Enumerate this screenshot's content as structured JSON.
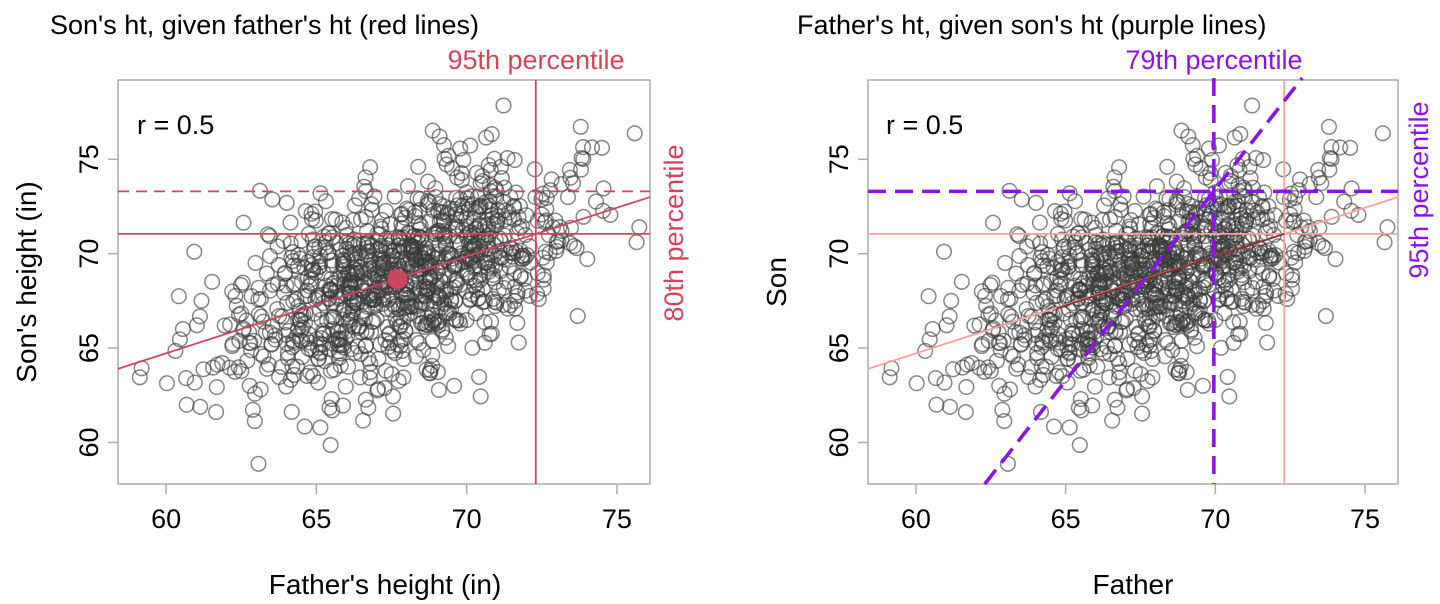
{
  "colors": {
    "red": "#d1455c",
    "light_red": "#f4a3a0",
    "dark_red": "#8b2b2b",
    "purple": "#8a14e6",
    "points": "#3a3a3a",
    "axis": "#aaaaaa"
  },
  "chart_data": [
    {
      "type": "scatter",
      "title": "Son's ht, given father's ht (red lines)",
      "xlabel": "Father's height (in)",
      "ylabel": "Son's height (in)",
      "xlim": [
        58.4,
        76.1
      ],
      "ylim": [
        57.8,
        79.2
      ],
      "xticks": [
        "60",
        "65",
        "70",
        "75"
      ],
      "yticks": [
        "60",
        "65",
        "70",
        "75"
      ],
      "annotation": "r = 0.5",
      "point_color": "#3a3a3a",
      "points_source": "same father/son sample in both panels",
      "lines": [
        {
          "kind": "regression",
          "style": "solid",
          "color": "#d1455c",
          "x": [
            58.4,
            76.1
          ],
          "y": [
            63.9,
            73.0
          ]
        },
        {
          "kind": "vertical",
          "style": "solid",
          "color": "#d1455c",
          "x": 72.3
        },
        {
          "kind": "horizontal",
          "style": "solid",
          "color": "#d1455c",
          "y": 71.05
        },
        {
          "kind": "horizontal",
          "style": "dashed",
          "color": "#d1455c",
          "y": 73.3
        }
      ],
      "mean_point": {
        "x": 67.7,
        "y": 68.65,
        "color": "#d1455c"
      },
      "labels": {
        "top": {
          "text": "95th percentile",
          "color": "#d1455c"
        },
        "right": {
          "text": "80th percentile",
          "color": "#d1455c"
        }
      }
    },
    {
      "type": "scatter",
      "title": "Father's ht, given son's ht (purple lines)",
      "xlabel": "Father",
      "ylabel": "Son",
      "xlim": [
        58.4,
        76.1
      ],
      "ylim": [
        57.8,
        79.2
      ],
      "xticks": [
        "60",
        "65",
        "70",
        "75"
      ],
      "yticks": [
        "60",
        "65",
        "70",
        "75"
      ],
      "annotation": "r = 0.5",
      "point_color": "#3a3a3a",
      "lines": [
        {
          "kind": "regression",
          "style": "solid",
          "color": "#f4a3a0",
          "x": [
            58.4,
            76.1
          ],
          "y": [
            63.9,
            73.0
          ]
        },
        {
          "kind": "vertical",
          "style": "solid",
          "color": "#f4a3a0",
          "x": 72.3
        },
        {
          "kind": "horizontal",
          "style": "solid",
          "color": "#f4a3a0",
          "y": 71.05
        },
        {
          "kind": "regression",
          "style": "solid",
          "color": "#8b2b2b",
          "x": [
            64.7,
            72.3
          ],
          "y": [
            67.1,
            71.05
          ]
        },
        {
          "kind": "horizontal",
          "style": "dashed",
          "color": "#8a14e6",
          "y": 73.3
        },
        {
          "kind": "vertical",
          "style": "dashed",
          "color": "#8a14e6",
          "x": 69.95
        },
        {
          "kind": "regression",
          "style": "dashed",
          "color": "#8a14e6",
          "x": [
            62.3,
            72.9
          ],
          "y": [
            57.8,
            79.2
          ]
        }
      ],
      "labels": {
        "top": {
          "text": "79th percentile",
          "color": "#8a14e6"
        },
        "right": {
          "text": "95th percentile",
          "color": "#8a14e6"
        }
      }
    }
  ]
}
